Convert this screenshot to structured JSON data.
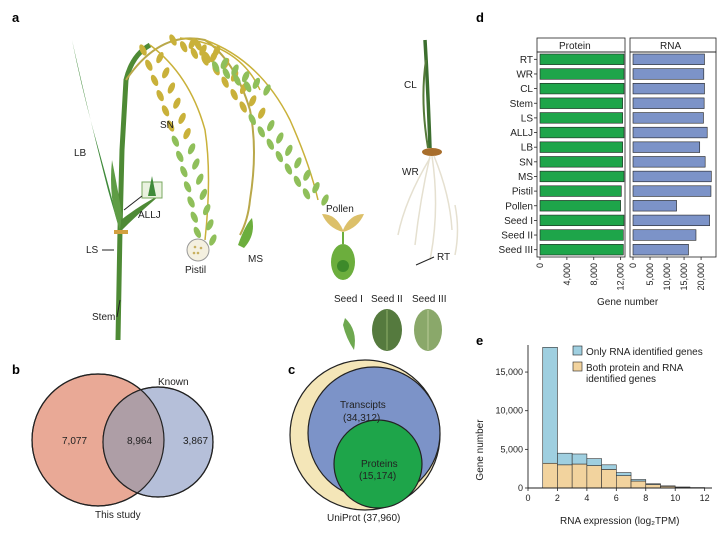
{
  "panels": {
    "a": "a",
    "b": "b",
    "c": "c",
    "d": "d",
    "e": "e"
  },
  "panel_a": {
    "labels": {
      "LB": "LB",
      "LS": "LS",
      "Stem": "Stem",
      "ALLJ": "ALLJ",
      "SN": "SN",
      "MS": "MS",
      "Pistil": "Pistil",
      "Pollen": "Pollen",
      "CL": "CL",
      "WR": "WR",
      "RT": "RT",
      "SeedI": "Seed I",
      "SeedII": "Seed II",
      "SeedIII": "Seed III"
    },
    "colors": {
      "leaf": "#3f8a3a",
      "panicle_yellow": "#c9b13a",
      "panicle_green": "#8fbf5a",
      "pollen": "#6cae3d"
    }
  },
  "panel_b": {
    "this_study_only": "7,077",
    "overlap": "8,964",
    "known_only": "3,867",
    "label_known": "Known",
    "label_this_study": "This study",
    "colors": {
      "this_study": "#e9a996",
      "known": "#b5bfd9",
      "overlap": "#ae9ea6"
    }
  },
  "panel_c": {
    "transcripts_label": "Transcipts",
    "transcripts_value": "(34,312)",
    "proteins_label": "Proteins",
    "proteins_value": "(15,174)",
    "uniprot": "UniProt (37,960)",
    "colors": {
      "uniprot": "#f4e6b8",
      "transcripts": "#7c93c8",
      "proteins": "#1ea54a"
    }
  },
  "chart_data": [
    {
      "type": "bar",
      "orientation": "horizontal",
      "categories": [
        "RT",
        "WR",
        "CL",
        "Stem",
        "LS",
        "ALLJ",
        "LB",
        "SN",
        "MS",
        "Pistil",
        "Pollen",
        "Seed I",
        "Seed II",
        "Seed III"
      ],
      "series": [
        {
          "name": "Protein",
          "values": [
            12500,
            12500,
            12500,
            12300,
            12300,
            12500,
            12300,
            12300,
            12500,
            12100,
            12000,
            12500,
            12400,
            12400
          ],
          "color": "#1ea54a"
        },
        {
          "name": "RNA",
          "values": [
            21000,
            20800,
            21000,
            20900,
            20700,
            21800,
            19600,
            21200,
            23000,
            22900,
            12800,
            22500,
            18500,
            16300
          ],
          "color": "#7c93c8"
        }
      ],
      "xlabel": "Gene number",
      "protein_xlim": [
        0,
        12500
      ],
      "protein_ticks": [
        "0",
        "4,000",
        "8,000",
        "12,000"
      ],
      "protein_tick_values": [
        0,
        4000,
        8000,
        12000
      ],
      "rna_xlim": [
        0,
        23500
      ],
      "rna_ticks": [
        "0",
        "5,000",
        "10,000",
        "15,000",
        "20,000"
      ],
      "rna_tick_values": [
        0,
        5000,
        10000,
        15000,
        20000
      ]
    },
    {
      "type": "bar",
      "stacked": true,
      "bins": [
        [
          1,
          2
        ],
        [
          2,
          3
        ],
        [
          3,
          4
        ],
        [
          4,
          5
        ],
        [
          5,
          6
        ],
        [
          6,
          7
        ],
        [
          7,
          8
        ],
        [
          8,
          9
        ],
        [
          9,
          10
        ],
        [
          10,
          11
        ],
        [
          11,
          12
        ]
      ],
      "series": [
        {
          "name": "Only RNA identified genes",
          "values": [
            15000,
            1500,
            1300,
            900,
            600,
            400,
            200,
            100,
            60,
            30,
            10
          ],
          "color": "#9fcfe0"
        },
        {
          "name": "Both protein and RNA identified genes",
          "values": [
            3200,
            3000,
            3100,
            2900,
            2400,
            1600,
            900,
            450,
            220,
            100,
            40
          ],
          "color": "#f2d39e"
        }
      ],
      "xlabel": "RNA expression (log₂TPM)",
      "ylabel": "Gene number",
      "ylim": [
        0,
        18500
      ],
      "xlim": [
        0,
        12.5
      ],
      "y_ticks": [
        "0",
        "5,000",
        "10,000",
        "15,000"
      ],
      "y_tick_values": [
        0,
        5000,
        10000,
        15000
      ],
      "x_ticks": [
        "0",
        "2",
        "4",
        "6",
        "8",
        "10",
        "12"
      ],
      "x_tick_values": [
        0,
        2,
        4,
        6,
        8,
        10,
        12
      ],
      "legend": "top-right"
    }
  ]
}
